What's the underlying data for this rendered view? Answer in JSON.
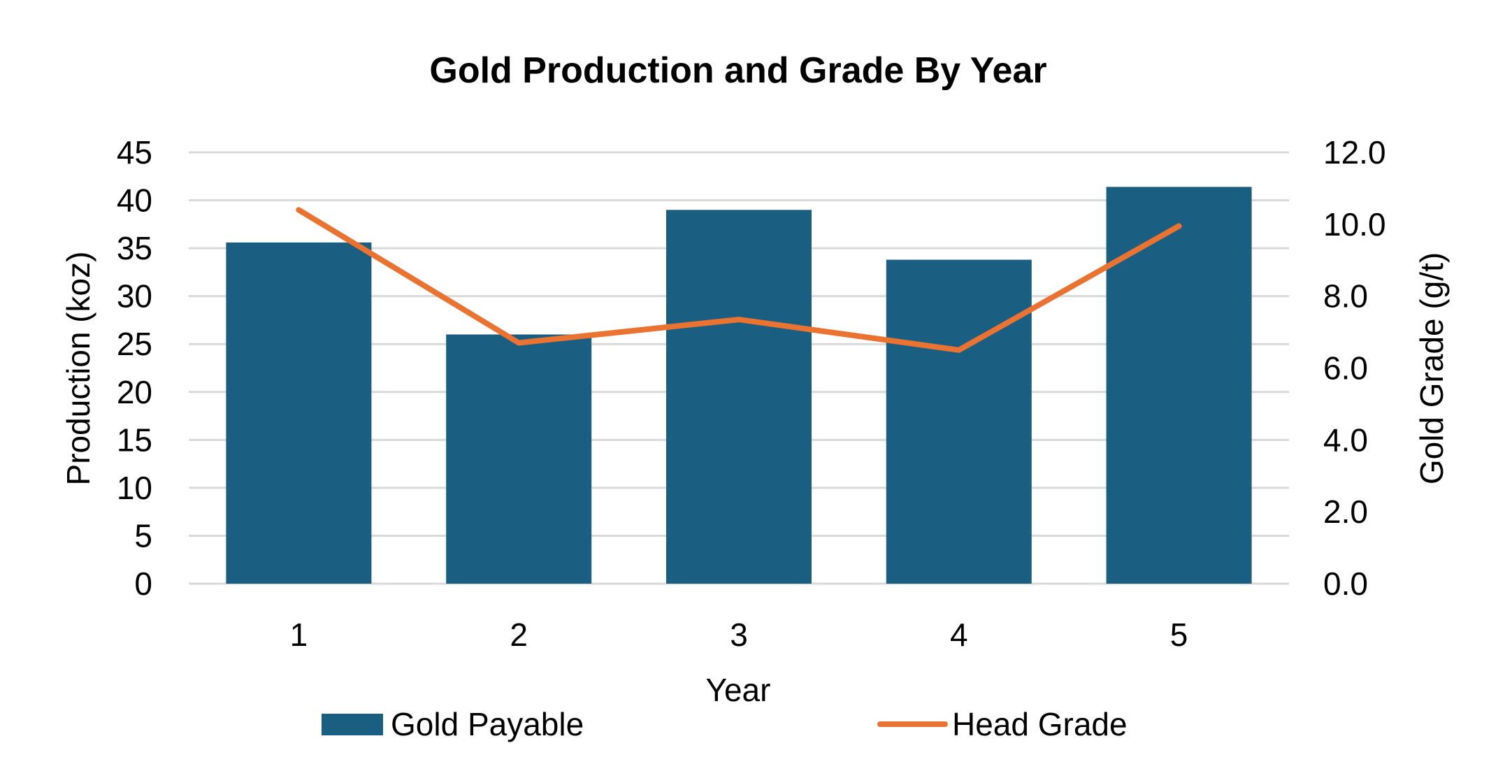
{
  "chart_data": {
    "type": "bar",
    "title": "Gold Production and Grade By Year",
    "xlabel": "Year",
    "ylabel": "Production (koz)",
    "y2label": "Gold Grade (g/t)",
    "categories": [
      "1",
      "2",
      "3",
      "4",
      "5"
    ],
    "ylim": [
      0,
      45
    ],
    "yticks": [
      "0",
      "5",
      "10",
      "15",
      "20",
      "25",
      "30",
      "35",
      "40",
      "45"
    ],
    "y2lim": [
      0,
      12
    ],
    "y2ticks": [
      "0.0",
      "2.0",
      "4.0",
      "6.0",
      "8.0",
      "10.0",
      "12.0"
    ],
    "grid": true,
    "legend_position": "bottom",
    "series": [
      {
        "name": "Gold Payable",
        "type": "bar",
        "axis": "left",
        "color": "#1a5f82",
        "values": [
          35.6,
          26.0,
          39.0,
          33.8,
          41.4
        ]
      },
      {
        "name": "Head Grade",
        "type": "line",
        "axis": "right",
        "color": "#eb7331",
        "values": [
          10.4,
          6.7,
          7.35,
          6.5,
          9.95
        ]
      }
    ]
  }
}
